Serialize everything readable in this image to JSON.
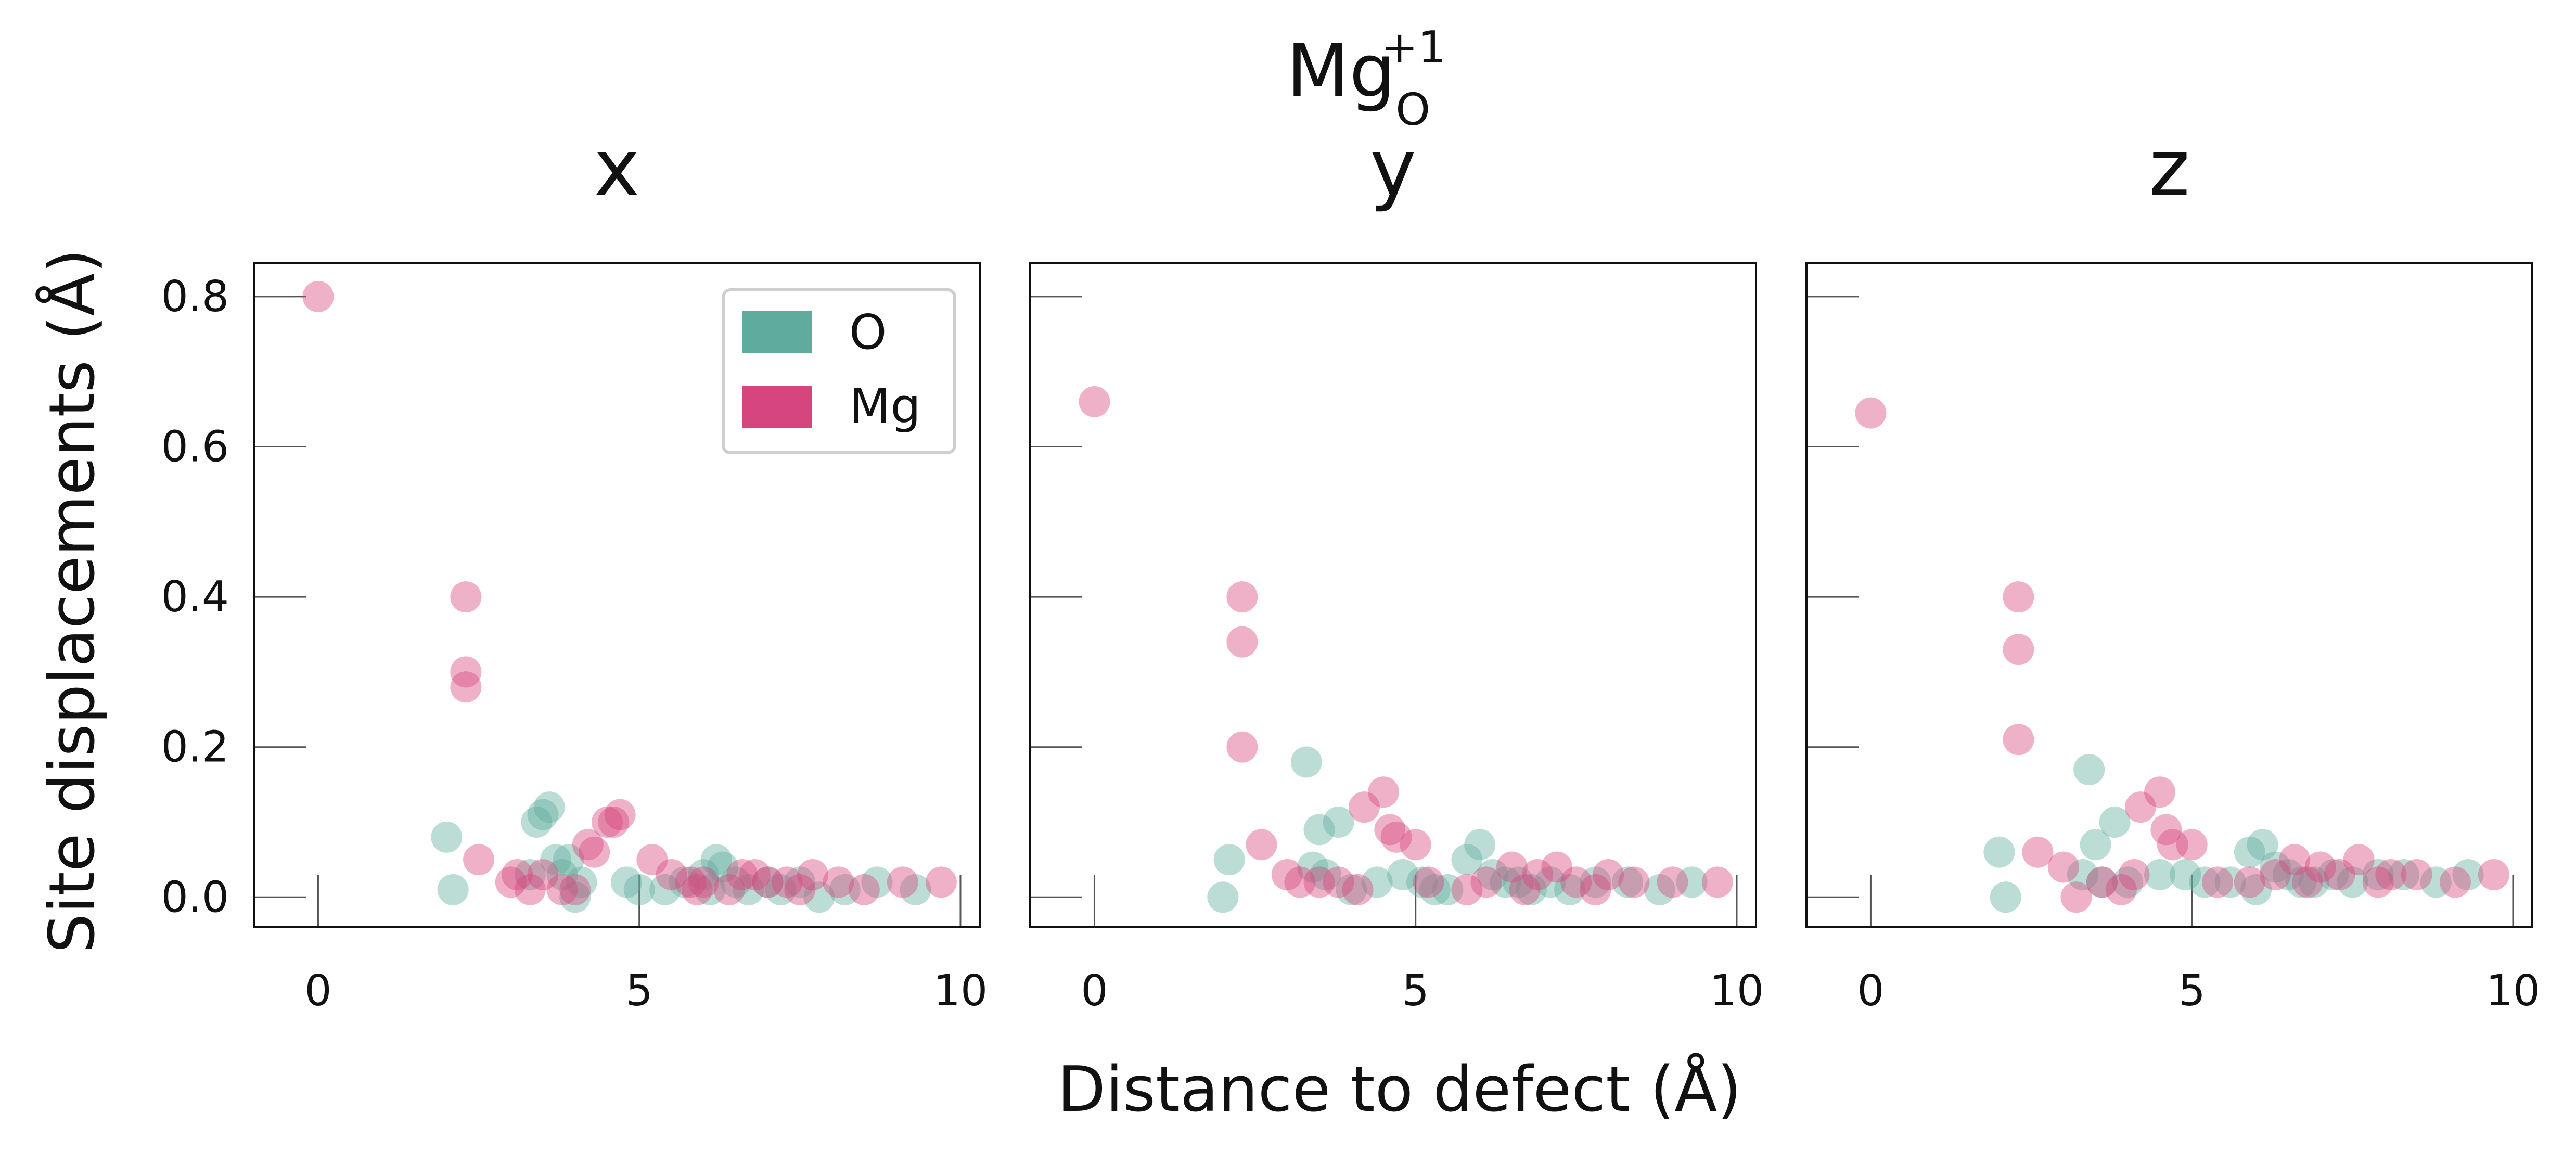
{
  "chart_data": {
    "type": "scatter",
    "title": {
      "base": "Mg",
      "subscript": "O",
      "superscript": "+1"
    },
    "xlabel": "Distance to defect (Å)",
    "ylabel": "Site displacements (Å)",
    "xlim": [
      -1,
      10.3
    ],
    "ylim": [
      -0.04,
      0.845
    ],
    "xticks": [
      0,
      5,
      10
    ],
    "yticks": [
      0.0,
      0.2,
      0.4,
      0.6,
      0.8
    ],
    "yticklabels": [
      "0.0",
      "0.2",
      "0.4",
      "0.6",
      "0.8"
    ],
    "legend": {
      "position": "top-right",
      "entries": [
        {
          "name": "O",
          "color": "#5fab9e"
        },
        {
          "name": "Mg",
          "color": "#d6457d"
        }
      ]
    },
    "colors": {
      "O": "#5fab9e",
      "Mg": "#d6457d"
    },
    "panels": [
      {
        "title": "x",
        "series": [
          {
            "name": "Mg",
            "points": [
              [
                0.0,
                0.8
              ],
              [
                2.3,
                0.4
              ],
              [
                2.3,
                0.3
              ],
              [
                2.3,
                0.28
              ],
              [
                2.5,
                0.05
              ],
              [
                3.0,
                0.02
              ],
              [
                3.1,
                0.03
              ],
              [
                3.3,
                0.01
              ],
              [
                3.5,
                0.03
              ],
              [
                4.2,
                0.07
              ],
              [
                4.3,
                0.06
              ],
              [
                4.5,
                0.1
              ],
              [
                4.6,
                0.1
              ],
              [
                4.7,
                0.11
              ],
              [
                5.2,
                0.05
              ],
              [
                5.5,
                0.03
              ],
              [
                5.8,
                0.02
              ],
              [
                6.0,
                0.02
              ],
              [
                6.4,
                0.01
              ],
              [
                6.6,
                0.03
              ],
              [
                6.8,
                0.03
              ],
              [
                7.0,
                0.02
              ],
              [
                7.3,
                0.02
              ],
              [
                7.7,
                0.03
              ],
              [
                8.1,
                0.02
              ],
              [
                8.5,
                0.01
              ],
              [
                9.1,
                0.02
              ],
              [
                9.7,
                0.02
              ],
              [
                3.8,
                0.01
              ],
              [
                4.0,
                0.01
              ],
              [
                5.9,
                0.01
              ],
              [
                7.5,
                0.01
              ]
            ]
          },
          {
            "name": "O",
            "points": [
              [
                2.0,
                0.08
              ],
              [
                2.1,
                0.01
              ],
              [
                3.4,
                0.1
              ],
              [
                3.5,
                0.11
              ],
              [
                3.6,
                0.12
              ],
              [
                3.7,
                0.05
              ],
              [
                3.8,
                0.03
              ],
              [
                3.9,
                0.05
              ],
              [
                4.0,
                0.0
              ],
              [
                4.1,
                0.02
              ],
              [
                4.8,
                0.02
              ],
              [
                5.0,
                0.01
              ],
              [
                5.4,
                0.01
              ],
              [
                5.7,
                0.02
              ],
              [
                6.0,
                0.03
              ],
              [
                6.2,
                0.05
              ],
              [
                6.3,
                0.04
              ],
              [
                6.5,
                0.02
              ],
              [
                6.7,
                0.01
              ],
              [
                7.0,
                0.02
              ],
              [
                7.2,
                0.01
              ],
              [
                7.5,
                0.02
              ],
              [
                7.8,
                0.0
              ],
              [
                8.2,
                0.01
              ],
              [
                8.7,
                0.02
              ],
              [
                9.3,
                0.01
              ],
              [
                3.3,
                0.03
              ],
              [
                6.1,
                0.01
              ]
            ]
          }
        ]
      },
      {
        "title": "y",
        "series": [
          {
            "name": "Mg",
            "points": [
              [
                0.0,
                0.66
              ],
              [
                2.3,
                0.4
              ],
              [
                2.3,
                0.34
              ],
              [
                2.3,
                0.2
              ],
              [
                2.6,
                0.07
              ],
              [
                3.0,
                0.03
              ],
              [
                3.2,
                0.02
              ],
              [
                3.5,
                0.02
              ],
              [
                4.2,
                0.12
              ],
              [
                4.5,
                0.14
              ],
              [
                4.6,
                0.09
              ],
              [
                4.7,
                0.08
              ],
              [
                5.0,
                0.07
              ],
              [
                5.2,
                0.02
              ],
              [
                5.8,
                0.01
              ],
              [
                6.1,
                0.02
              ],
              [
                6.5,
                0.04
              ],
              [
                6.9,
                0.03
              ],
              [
                7.2,
                0.04
              ],
              [
                7.5,
                0.02
              ],
              [
                8.0,
                0.03
              ],
              [
                8.4,
                0.02
              ],
              [
                9.0,
                0.02
              ],
              [
                9.7,
                0.02
              ],
              [
                3.8,
                0.02
              ],
              [
                4.1,
                0.01
              ],
              [
                6.7,
                0.01
              ],
              [
                7.8,
                0.01
              ]
            ]
          },
          {
            "name": "O",
            "points": [
              [
                2.0,
                0.0
              ],
              [
                2.1,
                0.05
              ],
              [
                3.3,
                0.18
              ],
              [
                3.5,
                0.09
              ],
              [
                3.8,
                0.1
              ],
              [
                3.4,
                0.04
              ],
              [
                3.6,
                0.03
              ],
              [
                4.0,
                0.01
              ],
              [
                4.4,
                0.02
              ],
              [
                4.8,
                0.03
              ],
              [
                5.1,
                0.02
              ],
              [
                5.5,
                0.01
              ],
              [
                5.8,
                0.05
              ],
              [
                6.0,
                0.07
              ],
              [
                6.2,
                0.03
              ],
              [
                6.4,
                0.02
              ],
              [
                6.8,
                0.01
              ],
              [
                7.1,
                0.02
              ],
              [
                7.4,
                0.01
              ],
              [
                7.8,
                0.02
              ],
              [
                8.3,
                0.02
              ],
              [
                8.8,
                0.01
              ],
              [
                9.3,
                0.02
              ],
              [
                5.3,
                0.01
              ],
              [
                6.6,
                0.02
              ]
            ]
          }
        ]
      },
      {
        "title": "z",
        "series": [
          {
            "name": "Mg",
            "points": [
              [
                0.0,
                0.645
              ],
              [
                2.3,
                0.4
              ],
              [
                2.3,
                0.33
              ],
              [
                2.3,
                0.21
              ],
              [
                2.6,
                0.06
              ],
              [
                3.0,
                0.04
              ],
              [
                3.2,
                0.0
              ],
              [
                3.6,
                0.02
              ],
              [
                4.2,
                0.12
              ],
              [
                4.5,
                0.14
              ],
              [
                4.6,
                0.09
              ],
              [
                4.7,
                0.07
              ],
              [
                5.0,
                0.07
              ],
              [
                5.4,
                0.02
              ],
              [
                5.9,
                0.02
              ],
              [
                6.3,
                0.03
              ],
              [
                6.6,
                0.05
              ],
              [
                7.0,
                0.04
              ],
              [
                7.3,
                0.03
              ],
              [
                7.6,
                0.05
              ],
              [
                8.1,
                0.03
              ],
              [
                8.5,
                0.03
              ],
              [
                9.1,
                0.02
              ],
              [
                9.7,
                0.03
              ],
              [
                3.9,
                0.01
              ],
              [
                4.1,
                0.03
              ],
              [
                6.8,
                0.02
              ],
              [
                7.9,
                0.02
              ]
            ]
          },
          {
            "name": "O",
            "points": [
              [
                2.0,
                0.06
              ],
              [
                2.1,
                0.0
              ],
              [
                3.4,
                0.17
              ],
              [
                3.5,
                0.07
              ],
              [
                3.8,
                0.1
              ],
              [
                3.3,
                0.03
              ],
              [
                3.6,
                0.02
              ],
              [
                4.0,
                0.02
              ],
              [
                4.5,
                0.03
              ],
              [
                4.9,
                0.03
              ],
              [
                5.2,
                0.02
              ],
              [
                5.6,
                0.02
              ],
              [
                5.9,
                0.06
              ],
              [
                6.1,
                0.07
              ],
              [
                6.3,
                0.04
              ],
              [
                6.5,
                0.03
              ],
              [
                6.9,
                0.02
              ],
              [
                7.2,
                0.03
              ],
              [
                7.5,
                0.02
              ],
              [
                7.9,
                0.03
              ],
              [
                8.3,
                0.03
              ],
              [
                8.8,
                0.02
              ],
              [
                9.3,
                0.03
              ],
              [
                6.0,
                0.01
              ],
              [
                6.7,
                0.02
              ]
            ]
          }
        ]
      }
    ]
  }
}
